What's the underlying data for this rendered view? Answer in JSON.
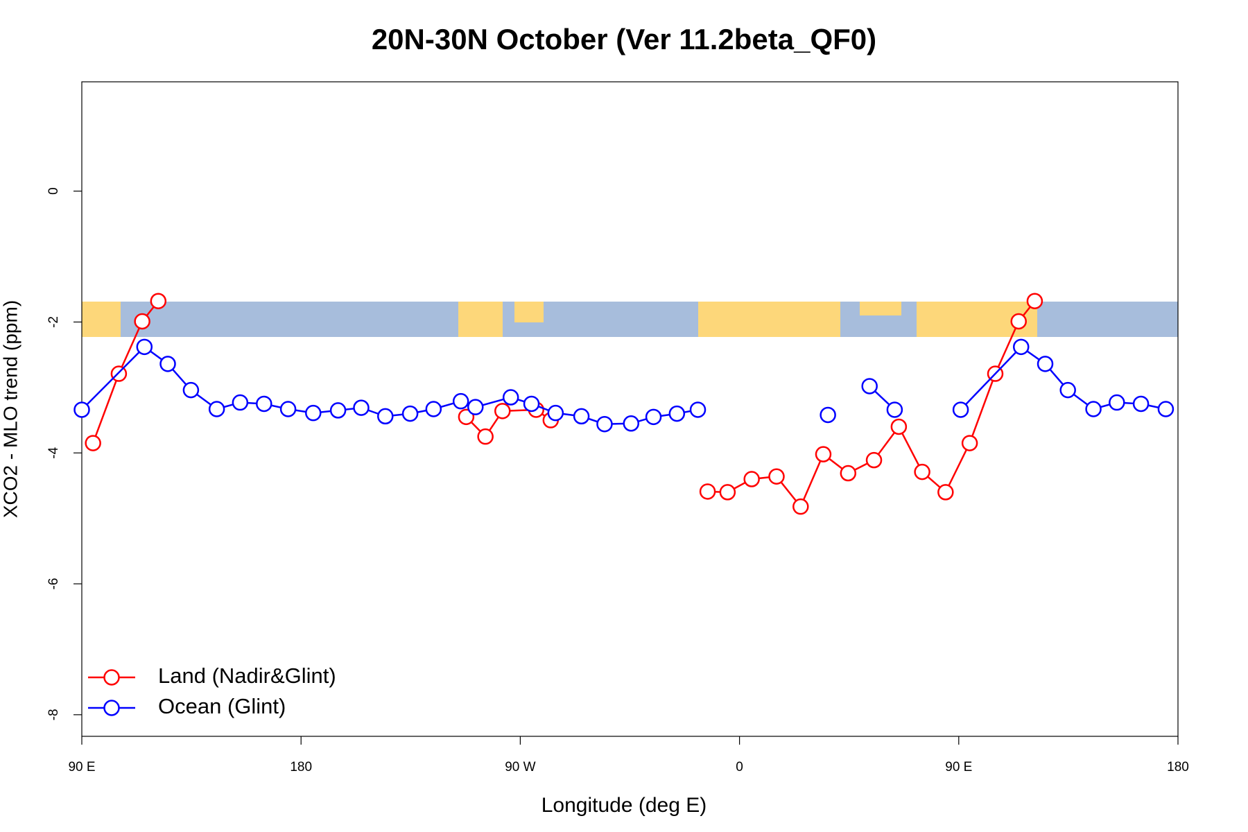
{
  "chart_data": {
    "type": "line",
    "title": "20N-30N October (Ver 11.2beta_QF0)",
    "x_label": "Longitude (deg E)",
    "y_label": "XCO2 - MLO trend (ppm)",
    "xlim": [
      90,
      540
    ],
    "ylim": [
      -8.33,
      1.67
    ],
    "xticks": [
      {
        "value": 90,
        "label": "90 E"
      },
      180,
      {
        "value": 270,
        "label": "90 W"
      },
      {
        "value": 360,
        "label": "0"
      },
      {
        "value": 450,
        "label": "90 E"
      },
      {
        "value": 540,
        "label": "180"
      }
    ],
    "yticks": [
      0,
      -2,
      -4,
      -6,
      -8
    ],
    "legend": "bottom-left",
    "series": [
      {
        "name": "Land (Nadir&Glint)",
        "color": "#ff0000",
        "x": [
          94.6,
          105.2,
          114.8,
          121.4,
          null,
          247.8,
          255.7,
          262.7,
          276.5,
          282.5,
          null,
          346.9,
          355.1,
          365,
          375.2,
          385.1,
          394.4,
          404.6,
          415.2,
          425.4,
          435,
          444.6,
          454.5,
          465,
          474.6,
          481.2
        ],
        "values": [
          -3.85,
          -2.79,
          -1.99,
          -1.68,
          null,
          -3.45,
          -3.75,
          -3.36,
          -3.34,
          -3.5,
          null,
          -4.59,
          -4.6,
          -4.4,
          -4.36,
          -4.82,
          -4.02,
          -4.31,
          -4.11,
          -3.6,
          -4.29,
          -4.6,
          -3.85,
          -2.79,
          -1.99,
          -1.68
        ]
      },
      {
        "name": "Ocean (Glint)",
        "color": "#0000ff",
        "x": [
          90,
          115.7,
          125.3,
          134.8,
          145.4,
          155,
          164.8,
          174.7,
          185,
          195.2,
          204.7,
          214.6,
          224.8,
          234.4,
          245.6,
          251.6,
          266.1,
          274.6,
          284.5,
          295.1,
          304.6,
          315.5,
          324.7,
          334.3,
          342.9,
          null,
          396.3,
          null,
          413.4,
          423.7,
          null,
          450.8,
          475.6,
          485.5,
          494.8,
          505.3,
          514.9,
          524.8,
          535
        ],
        "values": [
          -3.34,
          -2.38,
          -2.64,
          -3.04,
          -3.33,
          -3.23,
          -3.25,
          -3.33,
          -3.39,
          -3.35,
          -3.31,
          -3.44,
          -3.4,
          -3.33,
          -3.21,
          -3.3,
          -3.15,
          -3.25,
          -3.39,
          -3.44,
          -3.56,
          -3.55,
          -3.45,
          -3.4,
          -3.34,
          null,
          -3.42,
          null,
          -2.98,
          -3.34,
          null,
          -3.34,
          -2.38,
          -2.64,
          -3.04,
          -3.33,
          -3.23,
          -3.25,
          -3.33
        ]
      }
    ]
  }
}
